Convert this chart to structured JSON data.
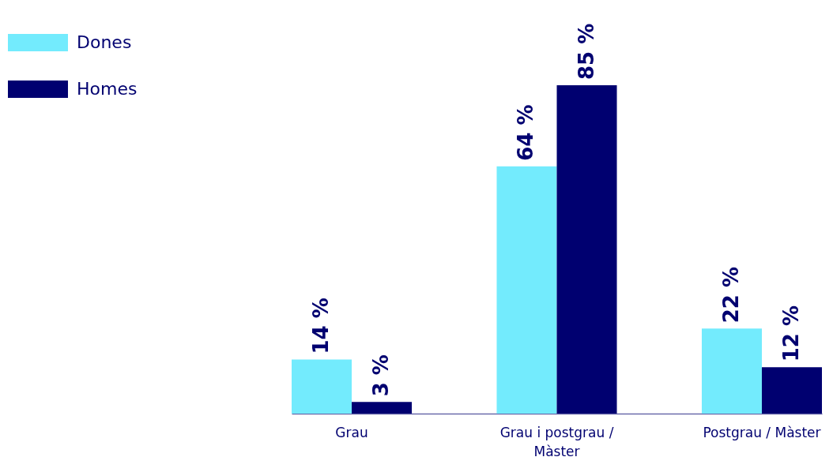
{
  "chart_data": {
    "type": "bar",
    "categories": [
      "Grau",
      "Grau i postgrau / Màster",
      "Postgrau / Màster"
    ],
    "series": [
      {
        "name": "Dones",
        "color": "#73ebfd",
        "values": [
          14,
          64,
          22
        ],
        "value_labels": [
          "14 %",
          "64 %",
          "22 %"
        ]
      },
      {
        "name": "Homes",
        "color": "#000070",
        "values": [
          3,
          85,
          12
        ],
        "value_labels": [
          "3 %",
          "85 %",
          "12 %"
        ]
      }
    ],
    "tick_labels": "x",
    "legend": "top left"
  }
}
